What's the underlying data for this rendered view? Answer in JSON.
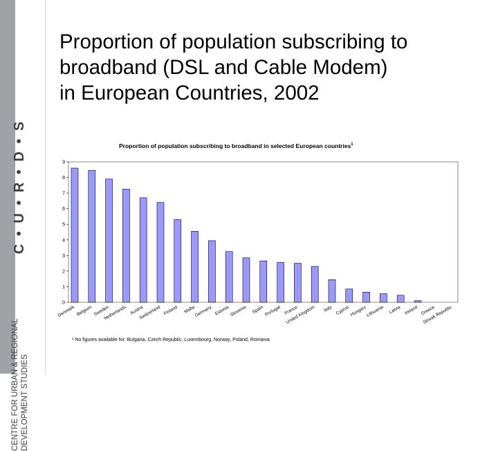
{
  "sidebar": {
    "logo_text": "C • U • R • D • S",
    "centre_line1": "CENTRE FOR URBAN & REGIONAL",
    "centre_line2": "DEVELOPMENT STUDIES"
  },
  "slide": {
    "title_line1": "Proportion of population subscribing to",
    "title_line2": "broadband (DSL and Cable Modem)",
    "title_line3": "in European Countries, 2002"
  },
  "chart_data": {
    "type": "bar",
    "title": "Proportion of population subscribing to broadband in selected European countries",
    "title_superscript": "1",
    "categories": [
      "Denmark",
      "Belgium",
      "Sweden",
      "Netherlands",
      "Austria",
      "Switzerland",
      "Finland",
      "Malta",
      "Germany",
      "Estonia",
      "Slovenia",
      "Spain",
      "Portugal",
      "France",
      "United Kingdom",
      "Italy",
      "Cyprus",
      "Hungary",
      "Lithuania",
      "Latvia",
      "Ireland",
      "Greece",
      "Slovak Republic"
    ],
    "values": [
      8.6,
      8.45,
      7.9,
      7.25,
      6.7,
      6.4,
      5.3,
      4.55,
      3.95,
      3.25,
      2.85,
      2.65,
      2.55,
      2.5,
      2.3,
      1.45,
      0.85,
      0.65,
      0.55,
      0.45,
      0.1,
      0,
      0
    ],
    "yticks": [
      "0",
      "1",
      "2",
      "3",
      "4",
      "5",
      "6",
      "7",
      "8",
      "9"
    ],
    "ylim": [
      0,
      9
    ],
    "xlabel": "",
    "ylabel": "",
    "grid": false,
    "bar_color": "#9999ff",
    "bar_border": "#000000",
    "footnote": "¹ No figures available for: Bulgaria, Czech Republic, Luxembourg, Norway, Poland, Romania"
  }
}
